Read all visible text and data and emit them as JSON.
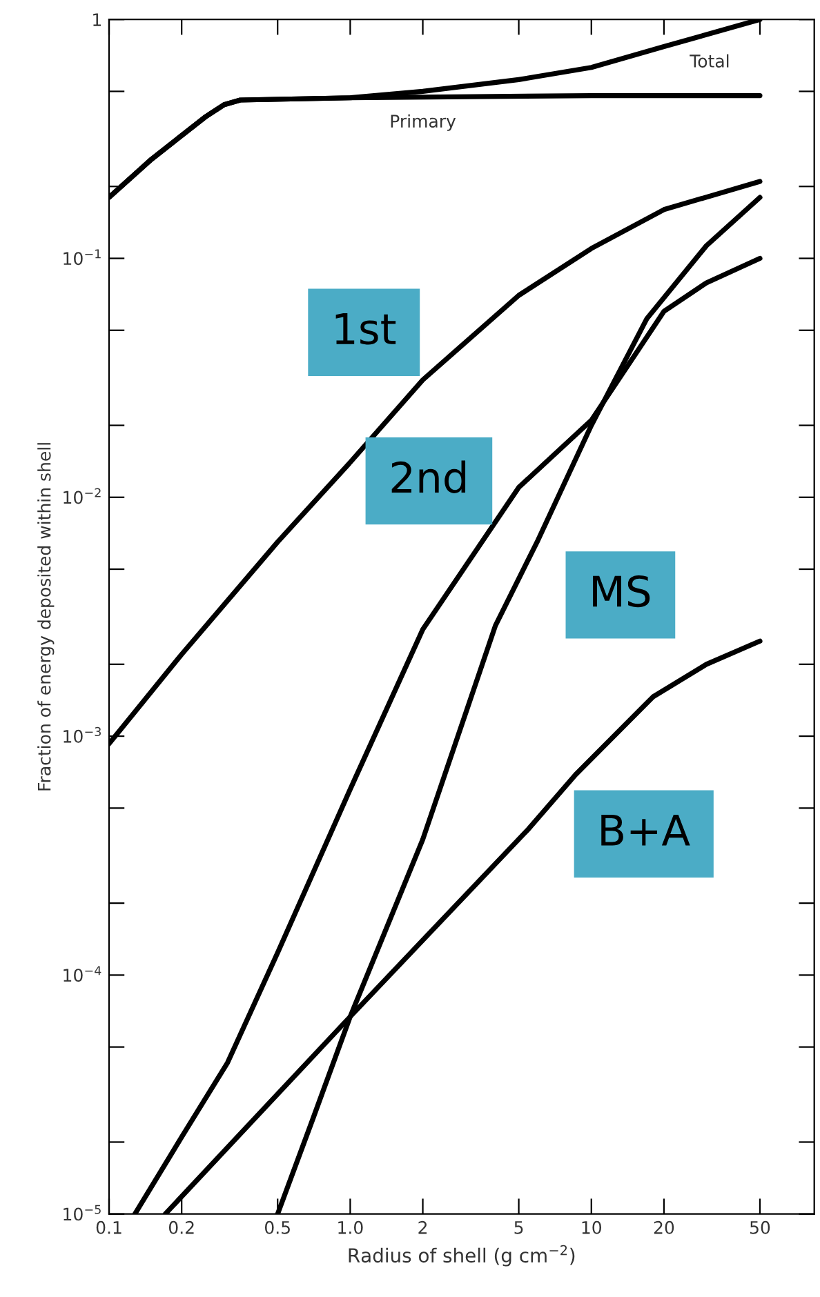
{
  "chart_data": {
    "type": "line",
    "xlabel": "Radius of shell (g cm$^{−2}$)",
    "ylabel": "Fraction of energy deposited within shell",
    "log": "xy",
    "grid": false,
    "legend": false,
    "marker": "none",
    "line_style": "solid",
    "xlim": [
      0.1,
      84
    ],
    "ylim": [
      1e-05,
      1
    ],
    "xticks": [
      0.1,
      0.2,
      0.5,
      {
        "value": 1,
        "label": "1.0"
      },
      2,
      5,
      10,
      20,
      50
    ],
    "yticks": [
      {
        "value": 1e-05,
        "label": "10$^{−5}$"
      },
      {
        "value": 2e-05,
        "label": null
      },
      {
        "value": 5e-05,
        "label": null
      },
      {
        "value": 0.0001,
        "label": "10$^{−4}$"
      },
      {
        "value": 0.0002,
        "label": null
      },
      {
        "value": 0.0005,
        "label": null
      },
      {
        "value": 0.001,
        "label": "10$^{−3}$"
      },
      {
        "value": 0.002,
        "label": null
      },
      {
        "value": 0.005,
        "label": null
      },
      {
        "value": 0.01,
        "label": "10$^{−2}$"
      },
      {
        "value": 0.02,
        "label": null
      },
      {
        "value": 0.05,
        "label": null
      },
      {
        "value": 0.1,
        "label": "10$^{−1}$"
      },
      {
        "value": 0.2,
        "label": null
      },
      {
        "value": 0.5,
        "label": null
      },
      1
    ],
    "series": [
      {
        "name": "Total",
        "color": "#000000",
        "x": [
          0.1,
          0.15,
          0.25,
          0.3,
          0.35,
          1,
          2,
          5,
          10,
          20,
          50
        ],
        "values": [
          0.18,
          0.26,
          0.39,
          0.44,
          0.46,
          0.47,
          0.5,
          0.56,
          0.63,
          0.77,
          1.0
        ]
      },
      {
        "name": "Primary",
        "color": "#000000",
        "x": [
          0.1,
          0.15,
          0.25,
          0.3,
          0.35,
          1,
          10,
          50
        ],
        "values": [
          0.18,
          0.26,
          0.39,
          0.44,
          0.46,
          0.47,
          0.48,
          0.48
        ]
      },
      {
        "name": "1st",
        "color": "#000000",
        "x": [
          0.1,
          0.2,
          0.26,
          0.5,
          1,
          2,
          5,
          10,
          20,
          50
        ],
        "values": [
          0.00093,
          0.0022,
          0.003,
          0.0065,
          0.014,
          0.031,
          0.07,
          0.11,
          0.16,
          0.21
        ]
      },
      {
        "name": "2nd",
        "color": "#000000",
        "x": [
          0.128,
          0.2,
          0.31,
          0.5,
          1,
          2,
          5,
          10,
          20,
          30,
          50
        ],
        "values": [
          1e-05,
          2.1e-05,
          4.3e-05,
          0.000124,
          0.0006,
          0.0028,
          0.011,
          0.021,
          0.06,
          0.079,
          0.1
        ]
      },
      {
        "name": "MS",
        "color": "#000000",
        "x": [
          0.5,
          0.7,
          1,
          2,
          4,
          6,
          10,
          17,
          30,
          50
        ],
        "values": [
          1e-05,
          2.5e-05,
          6.7e-05,
          0.00037,
          0.0029,
          0.0066,
          0.02,
          0.056,
          0.113,
          0.18
        ]
      },
      {
        "name": "B+A",
        "color": "#000000",
        "x": [
          0.171,
          0.43,
          1,
          2,
          5.5,
          8.6,
          18,
          30,
          50
        ],
        "values": [
          1e-05,
          2.7e-05,
          6.7e-05,
          0.00014,
          0.00041,
          0.00069,
          0.00146,
          0.002,
          0.0025
        ]
      }
    ]
  }
}
